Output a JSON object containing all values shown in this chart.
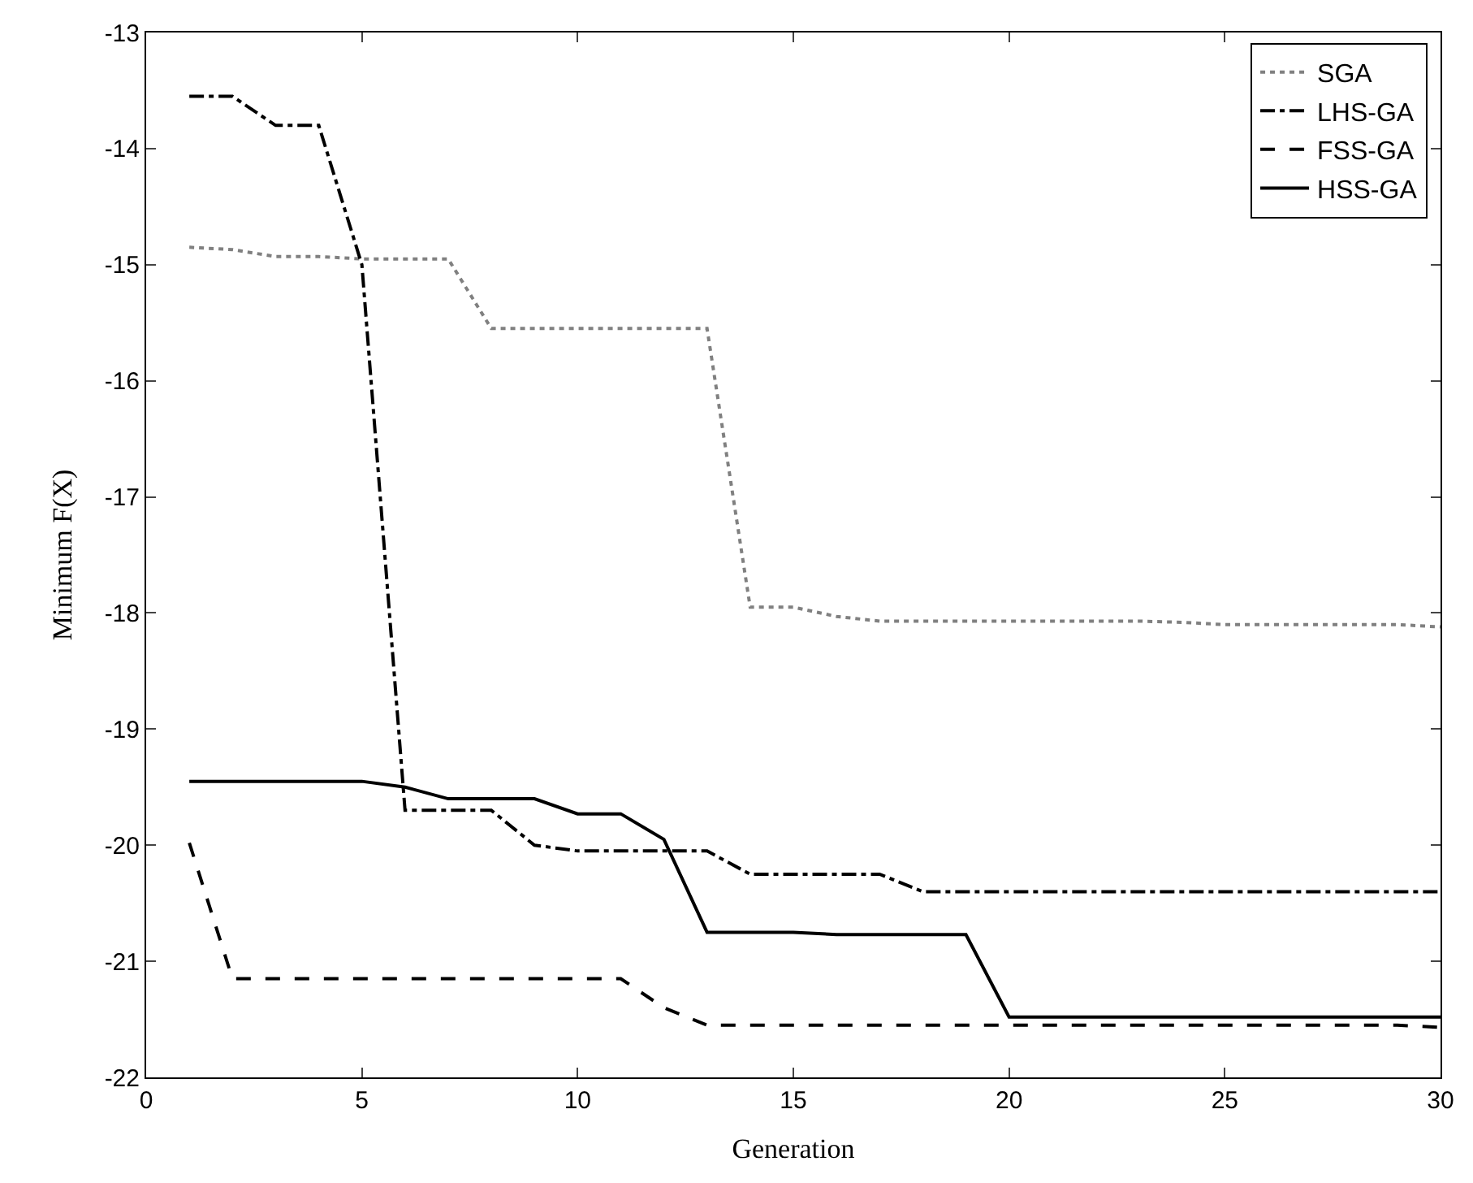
{
  "chart_data": {
    "type": "line",
    "xlabel": "Generation",
    "ylabel": "Minimum F(X)",
    "x": [
      1,
      2,
      3,
      4,
      5,
      6,
      7,
      8,
      9,
      10,
      11,
      12,
      13,
      14,
      15,
      16,
      17,
      18,
      19,
      20,
      21,
      22,
      23,
      24,
      25,
      26,
      27,
      28,
      29,
      30
    ],
    "xlim": [
      0,
      30
    ],
    "xticks": [
      0,
      5,
      10,
      15,
      20,
      25,
      30
    ],
    "ylim": [
      -22,
      -13
    ],
    "yticks": [
      -22,
      -21,
      -20,
      -19,
      -18,
      -17,
      -16,
      -15,
      -14,
      -13
    ],
    "legend": "top right",
    "marker": "none",
    "series": [
      {
        "name": "SGA",
        "color": "#808080",
        "line_style": "dotted",
        "values": [
          -14.85,
          -14.87,
          -14.93,
          -14.93,
          -14.95,
          -14.95,
          -14.95,
          -15.55,
          -15.55,
          -15.55,
          -15.55,
          -15.55,
          -15.55,
          -17.95,
          -17.95,
          -18.03,
          -18.07,
          -18.07,
          -18.07,
          -18.07,
          -18.07,
          -18.07,
          -18.07,
          -18.08,
          -18.1,
          -18.1,
          -18.1,
          -18.1,
          -18.1,
          -18.12
        ]
      },
      {
        "name": "LHS-GA",
        "color": "#000000",
        "line_style": "dashdot",
        "values": [
          -13.55,
          -13.55,
          -13.8,
          -13.8,
          -15.0,
          -19.7,
          -19.7,
          -19.7,
          -20.0,
          -20.05,
          -20.05,
          -20.05,
          -20.05,
          -20.25,
          -20.25,
          -20.25,
          -20.25,
          -20.4,
          -20.4,
          -20.4,
          -20.4,
          -20.4,
          -20.4,
          -20.4,
          -20.4,
          -20.4,
          -20.4,
          -20.4,
          -20.4,
          -20.4
        ]
      },
      {
        "name": "FSS-GA",
        "color": "#000000",
        "line_style": "dashed",
        "values": [
          -19.98,
          -21.15,
          -21.15,
          -21.15,
          -21.15,
          -21.15,
          -21.15,
          -21.15,
          -21.15,
          -21.15,
          -21.15,
          -21.4,
          -21.55,
          -21.55,
          -21.55,
          -21.55,
          -21.55,
          -21.55,
          -21.55,
          -21.55,
          -21.55,
          -21.55,
          -21.55,
          -21.55,
          -21.55,
          -21.55,
          -21.55,
          -21.55,
          -21.55,
          -21.57
        ]
      },
      {
        "name": "HSS-GA",
        "color": "#000000",
        "line_style": "solid",
        "values": [
          -19.45,
          -19.45,
          -19.45,
          -19.45,
          -19.45,
          -19.5,
          -19.6,
          -19.6,
          -19.6,
          -19.73,
          -19.73,
          -19.95,
          -20.75,
          -20.75,
          -20.75,
          -20.77,
          -20.77,
          -20.77,
          -20.77,
          -21.48,
          -21.48,
          -21.48,
          -21.48,
          -21.48,
          -21.48,
          -21.48,
          -21.48,
          -21.48,
          -21.48,
          -21.48
        ]
      }
    ]
  }
}
